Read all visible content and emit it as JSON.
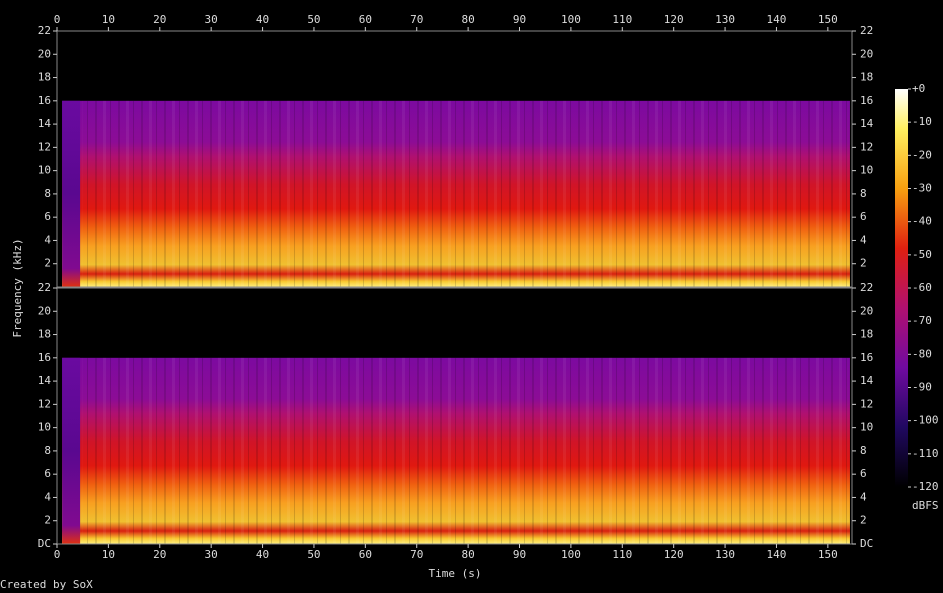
{
  "chart_data": {
    "type": "spectrogram",
    "x_label": "Time (s)",
    "y_label": "Frequency (kHz)",
    "xlim": [
      0,
      154.7
    ],
    "xticks": [
      0,
      10,
      20,
      30,
      40,
      50,
      60,
      70,
      80,
      90,
      100,
      110,
      120,
      130,
      140,
      150
    ],
    "ylim": [
      0,
      22
    ],
    "panels": [
      {
        "yticks": [
          2,
          4,
          6,
          8,
          10,
          12,
          14,
          16,
          18,
          20,
          22
        ]
      },
      {
        "yticks": [
          {
            "value": 0,
            "label": "DC"
          },
          2,
          4,
          6,
          8,
          10,
          12,
          14,
          16,
          18,
          20,
          22
        ]
      }
    ],
    "colorbar": {
      "label": "dBFS",
      "lim": [
        -120,
        0
      ],
      "ticks": [
        {
          "value": 0,
          "label": "+0"
        },
        -10,
        -20,
        -30,
        -40,
        -50,
        -60,
        -70,
        -80,
        -90,
        -100,
        -110,
        -120
      ]
    },
    "credit": "Created by SoX"
  }
}
